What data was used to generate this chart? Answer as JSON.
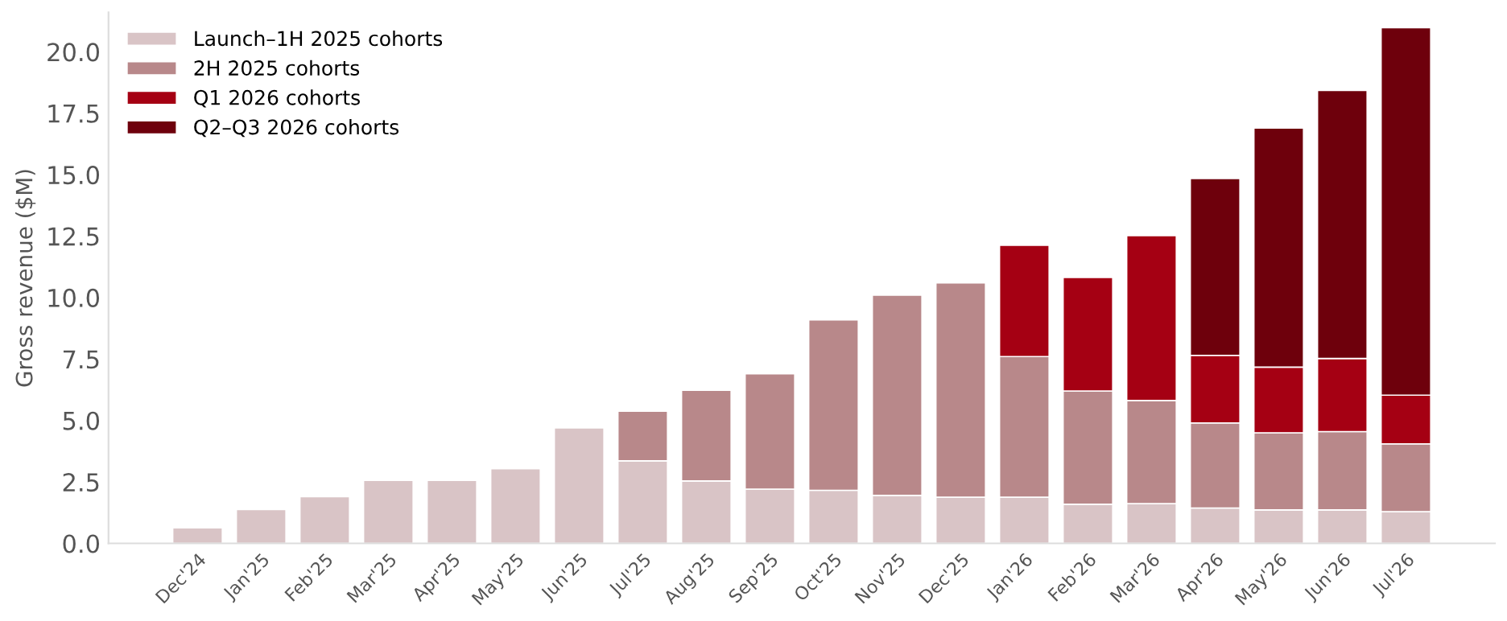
{
  "chart_data": {
    "type": "bar",
    "stacked": true,
    "ylabel": "Gross revenue ($M)",
    "categories": [
      "Dec'24",
      "Jan'25",
      "Feb'25",
      "Mar'25",
      "Apr'25",
      "May'25",
      "Jun'25",
      "Jul'25",
      "Aug'25",
      "Sep'25",
      "Oct'25",
      "Nov'25",
      "Dec'25",
      "Jan'26",
      "Feb'26",
      "Mar'26",
      "Apr'26",
      "May'26",
      "Jun'26",
      "Jul'26"
    ],
    "series": [
      {
        "name": "Launch–1H 2025 cohorts",
        "color": "#d9c4c6",
        "values": [
          0.63,
          1.38,
          1.9,
          2.56,
          2.56,
          3.04,
          4.7,
          3.36,
          2.54,
          2.21,
          2.16,
          1.95,
          1.88,
          1.88,
          1.59,
          1.62,
          1.44,
          1.36,
          1.36,
          1.29
        ]
      },
      {
        "name": "2H 2025 cohorts",
        "color": "#b8888a",
        "values": [
          null,
          null,
          null,
          null,
          null,
          null,
          null,
          2.02,
          3.69,
          4.69,
          6.93,
          8.15,
          8.72,
          5.72,
          4.61,
          4.19,
          3.46,
          3.14,
          3.19,
          2.76
        ]
      },
      {
        "name": "Q1 2026 cohorts",
        "color": "#a50013",
        "values": [
          null,
          null,
          null,
          null,
          null,
          null,
          null,
          null,
          null,
          null,
          null,
          null,
          null,
          4.53,
          4.62,
          6.71,
          2.75,
          2.67,
          2.97,
          1.98
        ]
      },
      {
        "name": "Q2–Q3 2026 cohorts",
        "color": "#6e000c",
        "values": [
          null,
          null,
          null,
          null,
          null,
          null,
          null,
          null,
          null,
          null,
          null,
          null,
          null,
          null,
          null,
          null,
          7.19,
          9.73,
          10.91,
          14.95
        ]
      }
    ],
    "ylim": [
      0,
      21.6
    ],
    "yticks": [
      {
        "value": 0,
        "label": "0.0"
      },
      {
        "value": 2.5,
        "label": "2.5"
      },
      {
        "value": 5,
        "label": "5.0"
      },
      {
        "value": 7.5,
        "label": "7.5"
      },
      {
        "value": 10,
        "label": "10.0"
      },
      {
        "value": 12.5,
        "label": "12.5"
      },
      {
        "value": 15,
        "label": "15.0"
      },
      {
        "value": 17.5,
        "label": "17.5"
      },
      {
        "value": 20,
        "label": "20.0"
      }
    ],
    "grid": false,
    "legend": "top left"
  }
}
